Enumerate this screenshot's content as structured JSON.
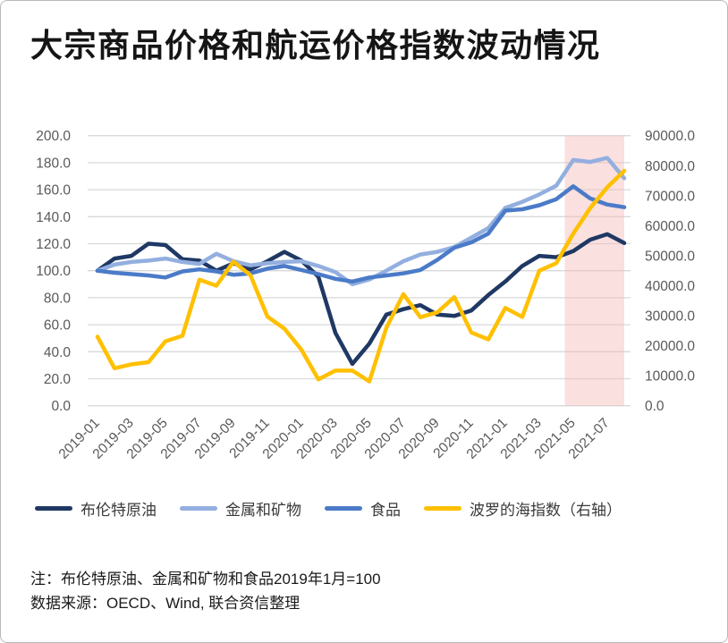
{
  "page": {
    "title": "大宗商品价格和航运价格指数波动情况"
  },
  "notes": {
    "line1": "注：布伦特原油、金属和矿物和食品2019年1月=100",
    "line2": "数据来源：OECD、Wind, 联合资信整理"
  },
  "chart_data": {
    "type": "line",
    "title": "大宗商品价格和航运价格指数波动情况",
    "x": [
      "2019-01",
      "2019-02",
      "2019-03",
      "2019-04",
      "2019-05",
      "2019-06",
      "2019-07",
      "2019-08",
      "2019-09",
      "2019-10",
      "2019-11",
      "2019-12",
      "2020-01",
      "2020-02",
      "2020-03",
      "2020-04",
      "2020-05",
      "2020-06",
      "2020-07",
      "2020-08",
      "2020-09",
      "2020-10",
      "2020-11",
      "2020-12",
      "2021-01",
      "2021-02",
      "2021-03",
      "2021-04",
      "2021-05",
      "2021-06",
      "2021-07",
      "2021-08"
    ],
    "x_tick_labels": [
      "2019-01",
      "2019-03",
      "2019-05",
      "2019-07",
      "2019-09",
      "2019-11",
      "2020-01",
      "2020-03",
      "2020-05",
      "2020-07",
      "2020-09",
      "2020-11",
      "2021-01",
      "2021-03",
      "2021-05",
      "2021-07"
    ],
    "left_axis": {
      "min": 0,
      "max": 200,
      "step": 20
    },
    "right_axis": {
      "min": 0,
      "max": 90000,
      "step": 10000
    },
    "grid": true,
    "legend_position": "bottom",
    "highlight_band": {
      "from": "2021-05",
      "to": "2021-08",
      "color": "#F2B4B2",
      "opacity": 0.42
    },
    "series": [
      {
        "name": "布伦特原油",
        "axis": "left",
        "color": "#1F3864",
        "values": [
          100,
          109,
          111,
          120,
          119,
          108.5,
          107.5,
          100,
          105.5,
          101,
          107,
          114,
          107.5,
          95.5,
          54,
          31,
          46,
          67.5,
          71.5,
          74.5,
          67.5,
          66.5,
          70.5,
          82,
          92,
          103.5,
          111,
          110,
          114.5,
          123,
          127,
          120.5
        ]
      },
      {
        "name": "金属和矿物",
        "axis": "left",
        "color": "#93AFDF",
        "values": [
          100,
          104.5,
          106.5,
          107.5,
          109,
          106.5,
          105,
          112.5,
          107,
          104,
          105.5,
          106.5,
          107,
          103.5,
          99,
          90,
          93.5,
          100,
          107,
          112,
          114,
          117.5,
          124.5,
          131.5,
          146.5,
          151,
          156.5,
          163,
          182,
          180.5,
          183.5,
          168.5
        ]
      },
      {
        "name": "食品",
        "axis": "left",
        "color": "#4B7BC8",
        "values": [
          100,
          98.5,
          97.5,
          96.5,
          95,
          99.5,
          101,
          99.5,
          97,
          98,
          101.5,
          103.5,
          100.5,
          97.5,
          94,
          92,
          95,
          96.5,
          98,
          100.5,
          108,
          117,
          121,
          127.5,
          144.5,
          145.5,
          148.5,
          153,
          162.5,
          153.5,
          149,
          147
        ]
      },
      {
        "name": "波罗的海指数（右轴）",
        "axis": "right",
        "color": "#FFC000",
        "values": [
          23000,
          12500,
          13800,
          14500,
          21500,
          23300,
          42000,
          40000,
          48000,
          43500,
          29700,
          25700,
          18700,
          8800,
          11700,
          11700,
          8100,
          26000,
          37200,
          29500,
          31100,
          36200,
          24400,
          22100,
          32600,
          29600,
          45000,
          47500,
          57400,
          65900,
          72800,
          78300
        ]
      }
    ],
    "colors": {
      "gridline": "#D9D9D9",
      "axis_text": "#595959"
    }
  }
}
